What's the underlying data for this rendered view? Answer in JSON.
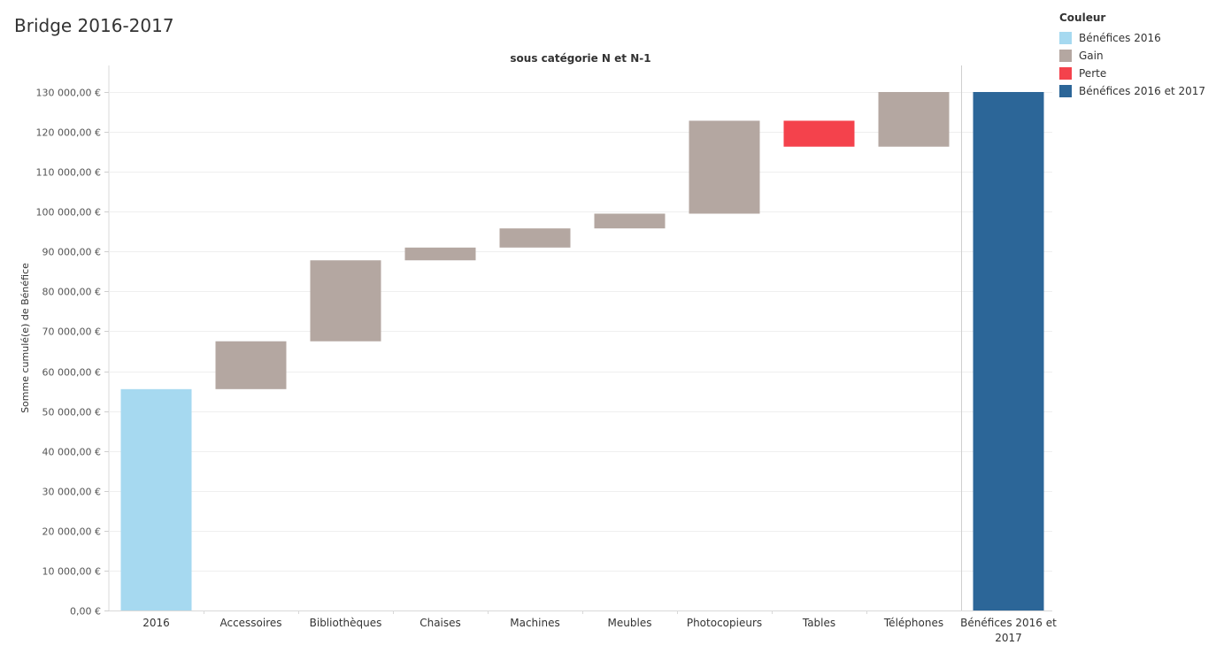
{
  "page_title": "Bridge 2016-2017",
  "legend": {
    "title": "Couleur",
    "items": [
      {
        "label": "Bénéfices 2016",
        "color": "#a6d9f0"
      },
      {
        "label": "Gain",
        "color": "#b4a7a1"
      },
      {
        "label": "Perte",
        "color": "#f4424c"
      },
      {
        "label": "Bénéfices 2016 et 2017",
        "color": "#2c6698"
      }
    ]
  },
  "chart_data": {
    "type": "bar",
    "subtype": "waterfall",
    "title": "sous catégorie N et N-1",
    "ylabel": "Somme cumulé(e) de Bénéfice",
    "xlabel": "",
    "ylim": [
      0,
      130000
    ],
    "yticks": [
      0,
      10000,
      20000,
      30000,
      40000,
      50000,
      60000,
      70000,
      80000,
      90000,
      100000,
      110000,
      120000,
      130000
    ],
    "ytick_labels": [
      "0,00 €",
      "10 000,00 €",
      "20 000,00 €",
      "30 000,00 €",
      "40 000,00 €",
      "50 000,00 €",
      "60 000,00 €",
      "70 000,00 €",
      "80 000,00 €",
      "90 000,00 €",
      "100 000,00 €",
      "110 000,00 €",
      "120 000,00 €",
      "130 000,00 €"
    ],
    "grid": true,
    "bars": [
      {
        "category": "2016",
        "start": 0,
        "end": 55500,
        "kind": "Bénéfices 2016"
      },
      {
        "category": "Accessoires",
        "start": 55500,
        "end": 67500,
        "kind": "Gain"
      },
      {
        "category": "Bibliothèques",
        "start": 67500,
        "end": 87800,
        "kind": "Gain"
      },
      {
        "category": "Chaises",
        "start": 87800,
        "end": 91000,
        "kind": "Gain"
      },
      {
        "category": "Machines",
        "start": 91000,
        "end": 95800,
        "kind": "Gain"
      },
      {
        "category": "Meubles",
        "start": 95800,
        "end": 99500,
        "kind": "Gain"
      },
      {
        "category": "Photocopieurs",
        "start": 99500,
        "end": 122800,
        "kind": "Gain"
      },
      {
        "category": "Tables",
        "start": 122800,
        "end": 116300,
        "kind": "Perte"
      },
      {
        "category": "Téléphones",
        "start": 116300,
        "end": 130000,
        "kind": "Gain"
      }
    ],
    "total": {
      "category": "Bénéfices 2016 et 2017",
      "value": 130000,
      "kind": "Bénéfices 2016 et 2017"
    }
  }
}
